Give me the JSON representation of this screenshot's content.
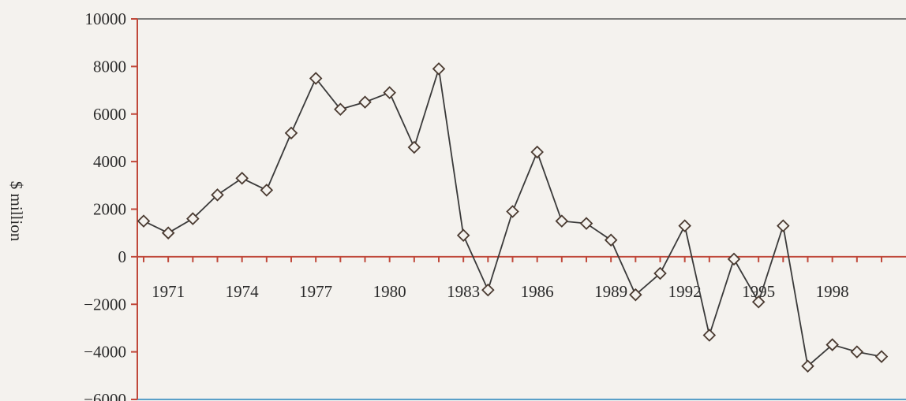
{
  "chart_data": {
    "type": "line",
    "title": "",
    "xlabel": "",
    "ylabel": "$ million",
    "ylim": [
      -6000,
      10000
    ],
    "y_ticks": [
      10000,
      8000,
      6000,
      4000,
      2000,
      0,
      -2000,
      -4000,
      -6000
    ],
    "y_tick_labels": [
      "10000",
      "8000",
      "6000",
      "4000",
      "2000",
      "0",
      "−2000",
      "−4000",
      "−6000"
    ],
    "x_tick_labels": [
      "1971",
      "1974",
      "1977",
      "1980",
      "1983",
      "1986",
      "1989",
      "1992",
      "1995",
      "1998"
    ],
    "x_tick_values": [
      1971,
      1974,
      1977,
      1980,
      1983,
      1986,
      1989,
      1992,
      1995,
      1998
    ],
    "series": [
      {
        "x": [
          1970,
          1971,
          1972,
          1973,
          1974,
          1975,
          1976,
          1977,
          1978,
          1979,
          1980,
          1981,
          1982,
          1983,
          1984,
          1985,
          1986,
          1987,
          1988,
          1989,
          1990,
          1991,
          1992,
          1993,
          1994,
          1995,
          1996,
          1997,
          1998,
          1999,
          2000
        ],
        "values": [
          1500,
          1000,
          1600,
          2600,
          3300,
          2800,
          5200,
          7500,
          6200,
          6500,
          6900,
          4600,
          7900,
          900,
          -1400,
          1900,
          4400,
          1500,
          1400,
          700,
          -1600,
          -700,
          1300,
          -3300,
          -100,
          -1900,
          1300,
          -4600,
          -3700,
          -4000,
          -4200
        ],
        "marker": "diamond",
        "color": "#3a3a3a"
      }
    ],
    "grid": false,
    "legend": "none",
    "colors": {
      "axis": "#c0483a",
      "line": "#3a3a3a",
      "marker_fill": "#f4f2ee"
    }
  }
}
